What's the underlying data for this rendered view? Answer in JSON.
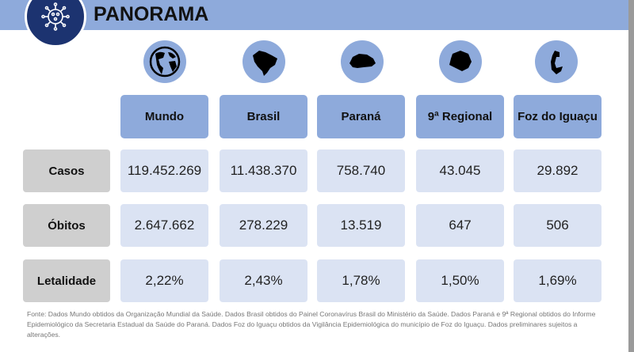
{
  "header": {
    "title": "PANORAMA",
    "logo": "virus-icon"
  },
  "columns": [
    {
      "label": "Mundo",
      "icon": "globe-icon"
    },
    {
      "label": "Brasil",
      "icon": "brazil-map-icon"
    },
    {
      "label": "Paraná",
      "icon": "parana-map-icon"
    },
    {
      "label": "9ª Regional",
      "icon": "regional-map-icon"
    },
    {
      "label": "Foz do Iguaçu",
      "icon": "foz-map-icon"
    }
  ],
  "rows": [
    {
      "label": "Casos",
      "values": [
        "119.452.269",
        "11.438.370",
        "758.740",
        "43.045",
        "29.892"
      ]
    },
    {
      "label": "Óbitos",
      "values": [
        "2.647.662",
        "278.229",
        "13.519",
        "647",
        "506"
      ]
    },
    {
      "label": "Letalidade",
      "values": [
        "2,22%",
        "2,43%",
        "1,78%",
        "1,50%",
        "1,69%"
      ]
    }
  ],
  "footnote": "Fonte: Dados Mundo obtidos da Organização Mundial da Saúde. Dados Brasil obtidos do Painel Coronavírus Brasil do Ministério da Saúde. Dados Paraná e 9ª Regional obtidos do Informe Epidemiológico da Secretaria Estadual da Saúde do Paraná.  Dados Foz do Iguaçu obtidos da Vigilância Epidemiológica do município de Foz do Iguaçu.  Dados preliminares sujeitos a alterações.",
  "colors": {
    "band": "#8eaadb",
    "cell": "#dbe3f3",
    "row_header": "#cfcfcf",
    "logo": "#1c3370"
  }
}
